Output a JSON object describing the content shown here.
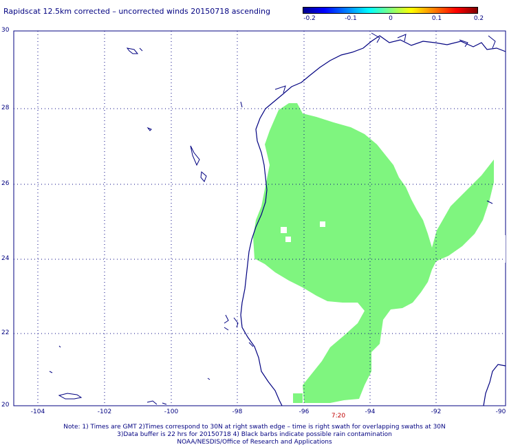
{
  "title": "Rapidscat 12.5km corrected – uncorrected winds 20150718 ascending",
  "colorbar": {
    "labels": [
      "-0.2",
      "-0.1",
      "0",
      "0.1",
      "0.2"
    ],
    "colors": [
      "#00008f",
      "#0000ff",
      "#00ffff",
      "#80ff80",
      "#ffff00",
      "#ff8000",
      "#ff0000",
      "#800000"
    ]
  },
  "axes": {
    "lat_labels": [
      "30",
      "28",
      "26",
      "24",
      "22",
      "20"
    ],
    "lon_labels": [
      "-104",
      "-102",
      "-100",
      "-98",
      "-96",
      "-94",
      "-92",
      "-90"
    ],
    "lon_range": [
      -105,
      -90
    ],
    "lat_range": [
      20,
      30
    ]
  },
  "time_label": "7:20",
  "notes": [
    "Note: 1) Times are GMT 2)Times correspond to 30N at right swath edge – time is right swath for overlapping swaths at 30N",
    "3)Data buffer is 22 hrs for 20150718 4) Black barbs indicate possible rain contamination",
    "NOAA/NESDIS/Office of Research and Applications"
  ],
  "colors": {
    "swath": "#7ff57f",
    "coast": "#000080",
    "grid": "#000080"
  }
}
